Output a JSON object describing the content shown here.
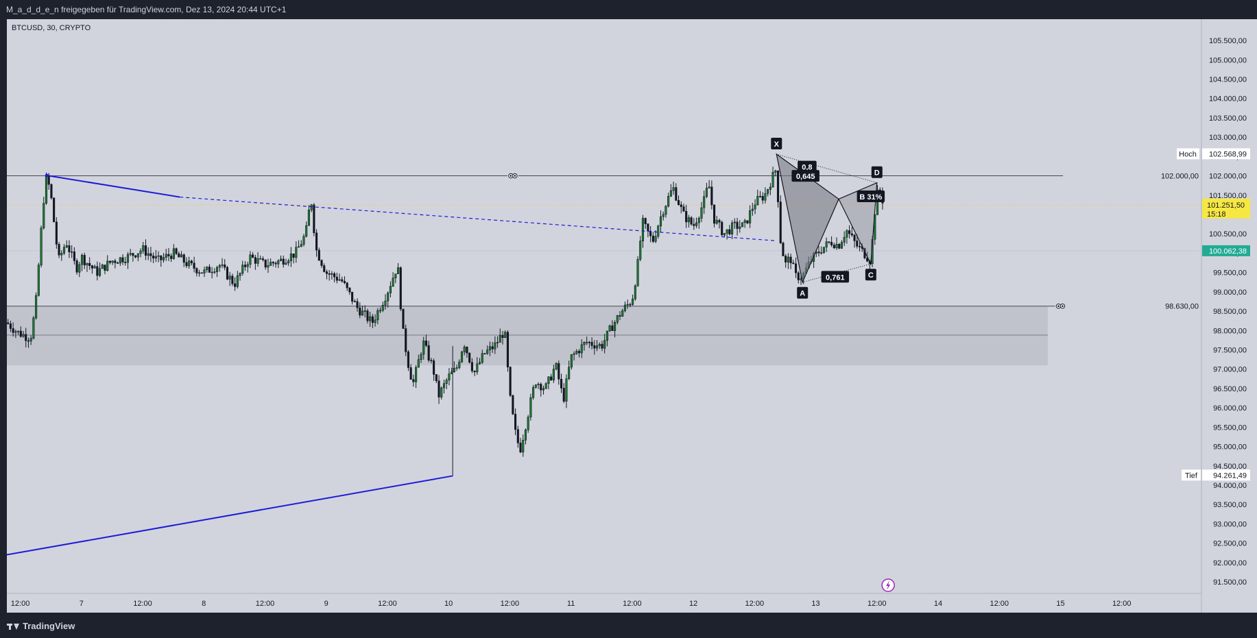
{
  "header": {
    "title": "M_a_d_d_e_n freigegeben für TradingView.com, Dez 13, 2024 20:44 UTC+1"
  },
  "footer": {
    "brand": "TradingView"
  },
  "chart_data": {
    "type": "candlestick",
    "symbol_label": "BTCUSD, 30, CRYPTO",
    "price_axis": {
      "ticks": [
        "105.500,00",
        "105.000,00",
        "104.500,00",
        "104.000,00",
        "103.500,00",
        "103.000,00",
        "102.500,00",
        "102.000,00",
        "101.500,00",
        "101.000,00",
        "100.500,00",
        "100.000,00",
        "99.500,00",
        "99.000,00",
        "98.500,00",
        "98.000,00",
        "97.500,00",
        "97.000,00",
        "96.500,00",
        "96.000,00",
        "95.500,00",
        "95.000,00",
        "94.500,00",
        "94.000,00",
        "93.500,00",
        "93.000,00",
        "92.500,00",
        "92.000,00",
        "91.500,00"
      ],
      "tick_values": [
        105500,
        105000,
        104500,
        104000,
        103500,
        103000,
        102500,
        102000,
        101500,
        101000,
        100500,
        100000,
        99500,
        99000,
        98500,
        98000,
        97500,
        97000,
        96500,
        96000,
        95500,
        95000,
        94500,
        94000,
        93500,
        93000,
        92500,
        92000,
        91500
      ],
      "range": [
        91200,
        106050
      ]
    },
    "time_axis": {
      "labels": [
        "12:00",
        "7",
        "12:00",
        "8",
        "12:00",
        "9",
        "12:00",
        "10",
        "12:00",
        "11",
        "12:00",
        "12",
        "12:00",
        "13",
        "12:00",
        "14",
        "12:00",
        "15",
        "12:00"
      ],
      "hours": [
        12,
        24,
        36,
        48,
        60,
        72,
        84,
        96,
        108,
        120,
        132,
        144,
        156,
        168,
        180,
        192,
        204,
        216,
        228
      ],
      "range": [
        9.37,
        243.64
      ]
    },
    "price_markers": {
      "high": {
        "label": "Hoch",
        "value": "102.568,99",
        "v": 102569
      },
      "low": {
        "label": "Tief",
        "value": "94.261,49",
        "v": 94261
      },
      "last": {
        "value": "101.251,50",
        "countdown": "15:18",
        "v": 101251.5
      },
      "crosshair": {
        "value": "100.062,38",
        "v": 100062
      }
    },
    "horizontal_levels": [
      {
        "value": "102.000,00",
        "v": 102000
      },
      {
        "value": "98.630,00",
        "v": 98630
      }
    ],
    "zone": {
      "from": 97100,
      "to": 98630,
      "mid": 97880
    },
    "trendlines": [
      {
        "kind": "solid-blue",
        "from": [
          17.2,
          102010
        ],
        "to": [
          43.3,
          101450
        ]
      },
      {
        "kind": "dashed-blue",
        "from": [
          43.3,
          101450
        ],
        "to": [
          160.3,
          100320
        ]
      },
      {
        "kind": "solid-blue",
        "from": [
          9.37,
          92200
        ],
        "to": [
          96.8,
          94240
        ]
      }
    ],
    "harmonic_pattern": {
      "points": [
        {
          "name": "X",
          "t": 160.3,
          "v": 102560
        },
        {
          "name": "A",
          "t": 165.4,
          "v": 99250
        },
        {
          "name": "B",
          "t": 172.5,
          "v": 101400
        },
        {
          "name": "C",
          "t": 178.8,
          "v": 99720
        },
        {
          "name": "D",
          "t": 180.0,
          "v": 101820
        }
      ],
      "ratios": [
        {
          "text": "0,8",
          "t": 166.3,
          "v": 102230
        },
        {
          "text": "0,645",
          "t": 166.0,
          "v": 101990
        },
        {
          "text": "0,761",
          "t": 171.8,
          "v": 99380
        },
        {
          "text": "B 31%",
          "t": 178.8,
          "v": 101460
        }
      ]
    },
    "candles_summary": [
      [
        9.4,
        98200
      ],
      [
        11.5,
        97950
      ],
      [
        14,
        97800
      ],
      [
        15,
        98600
      ],
      [
        16.5,
        101300
      ],
      [
        17.2,
        102000
      ],
      [
        18,
        101500
      ],
      [
        19.5,
        99800
      ],
      [
        21,
        100300
      ],
      [
        23,
        99600
      ],
      [
        24,
        99900
      ],
      [
        27,
        99500
      ],
      [
        30,
        99800
      ],
      [
        33,
        99900
      ],
      [
        36,
        100100
      ],
      [
        39,
        99800
      ],
      [
        42,
        100000
      ],
      [
        45,
        99700
      ],
      [
        48,
        99500
      ],
      [
        51,
        99700
      ],
      [
        54,
        99200
      ],
      [
        57,
        99900
      ],
      [
        60,
        99700
      ],
      [
        63,
        99800
      ],
      [
        66,
        100000
      ],
      [
        68,
        100500
      ],
      [
        69,
        101450
      ],
      [
        70,
        100100
      ],
      [
        72,
        99500
      ],
      [
        75,
        99300
      ],
      [
        78,
        98600
      ],
      [
        81,
        98200
      ],
      [
        84,
        99000
      ],
      [
        86,
        99700
      ],
      [
        87,
        98000
      ],
      [
        88,
        97200
      ],
      [
        89,
        96600
      ],
      [
        91,
        97700
      ],
      [
        93,
        97000
      ],
      [
        94,
        96300
      ],
      [
        96,
        96800
      ],
      [
        97.5,
        97000
      ],
      [
        99,
        97700
      ],
      [
        101,
        96900
      ],
      [
        103,
        97400
      ],
      [
        105,
        97600
      ],
      [
        107,
        98000
      ],
      [
        108,
        96300
      ],
      [
        109,
        95400
      ],
      [
        110,
        94900
      ],
      [
        111.5,
        95800
      ],
      [
        113,
        96700
      ],
      [
        115,
        96500
      ],
      [
        117,
        97100
      ],
      [
        118.5,
        96200
      ],
      [
        120,
        97300
      ],
      [
        123,
        97700
      ],
      [
        126,
        97600
      ],
      [
        128,
        98100
      ],
      [
        130,
        98500
      ],
      [
        132,
        98800
      ],
      [
        133,
        99600
      ],
      [
        134,
        100800
      ],
      [
        136,
        100300
      ],
      [
        138,
        101100
      ],
      [
        140,
        101700
      ],
      [
        142,
        101000
      ],
      [
        144,
        100700
      ],
      [
        146,
        101300
      ],
      [
        147,
        101800
      ],
      [
        148,
        100900
      ],
      [
        150,
        100500
      ],
      [
        152,
        100700
      ],
      [
        154,
        100700
      ],
      [
        156,
        101300
      ],
      [
        158,
        101500
      ],
      [
        160.3,
        102200
      ],
      [
        161,
        100400
      ],
      [
        162,
        99700
      ],
      [
        163,
        99900
      ],
      [
        164,
        99400
      ],
      [
        165.4,
        99400
      ],
      [
        167,
        99800
      ],
      [
        169,
        100100
      ],
      [
        171,
        100300
      ],
      [
        172.5,
        100200
      ],
      [
        174,
        100600
      ],
      [
        176,
        100200
      ],
      [
        177.5,
        100000
      ],
      [
        178.8,
        99800
      ],
      [
        179.5,
        101000
      ],
      [
        180.3,
        101700
      ],
      [
        181.4,
        101250
      ]
    ]
  }
}
